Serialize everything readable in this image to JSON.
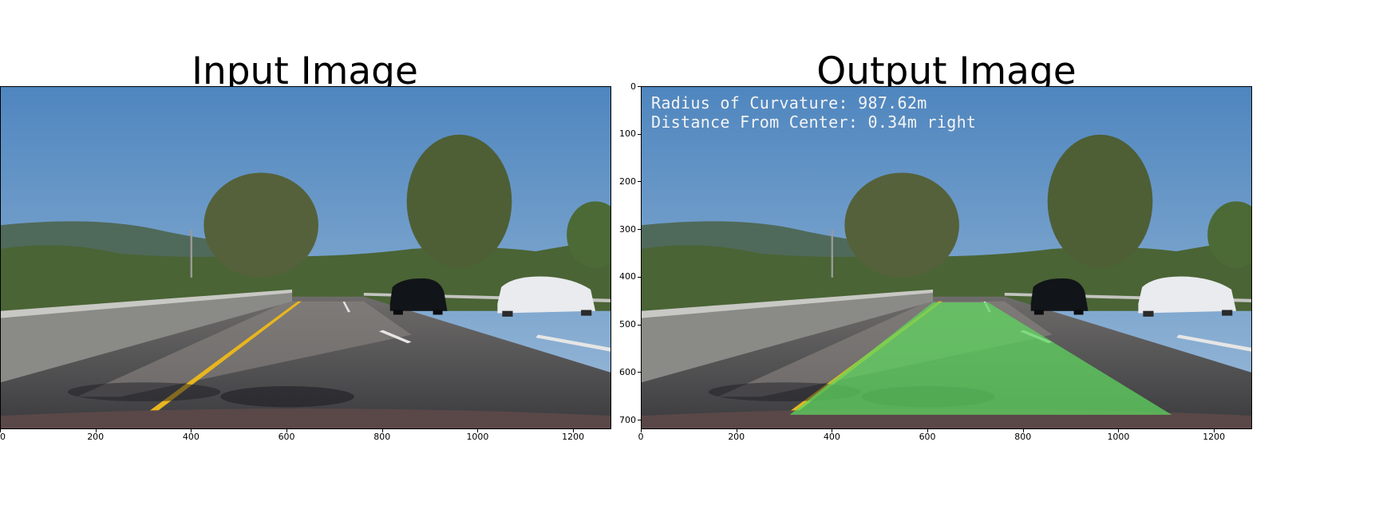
{
  "panels": {
    "input": {
      "title": "Input Image"
    },
    "output": {
      "title": "Output Image",
      "overlay": {
        "curvature": "Radius of Curvature: 987.62m",
        "distance": "Distance From Center: 0.34m right"
      }
    }
  },
  "axes": {
    "x_ticks": [
      "0",
      "200",
      "400",
      "600",
      "800",
      "1000",
      "1200"
    ],
    "y_ticks": [
      "0",
      "100",
      "200",
      "300",
      "400",
      "500",
      "600",
      "700"
    ]
  },
  "scene": {
    "sky_color": "#6d9ccc",
    "lane_fill_color": "#5fd45f",
    "lane_line_color": "#e8b61e",
    "car_black": "#111418",
    "car_white": "#e9ebee"
  }
}
